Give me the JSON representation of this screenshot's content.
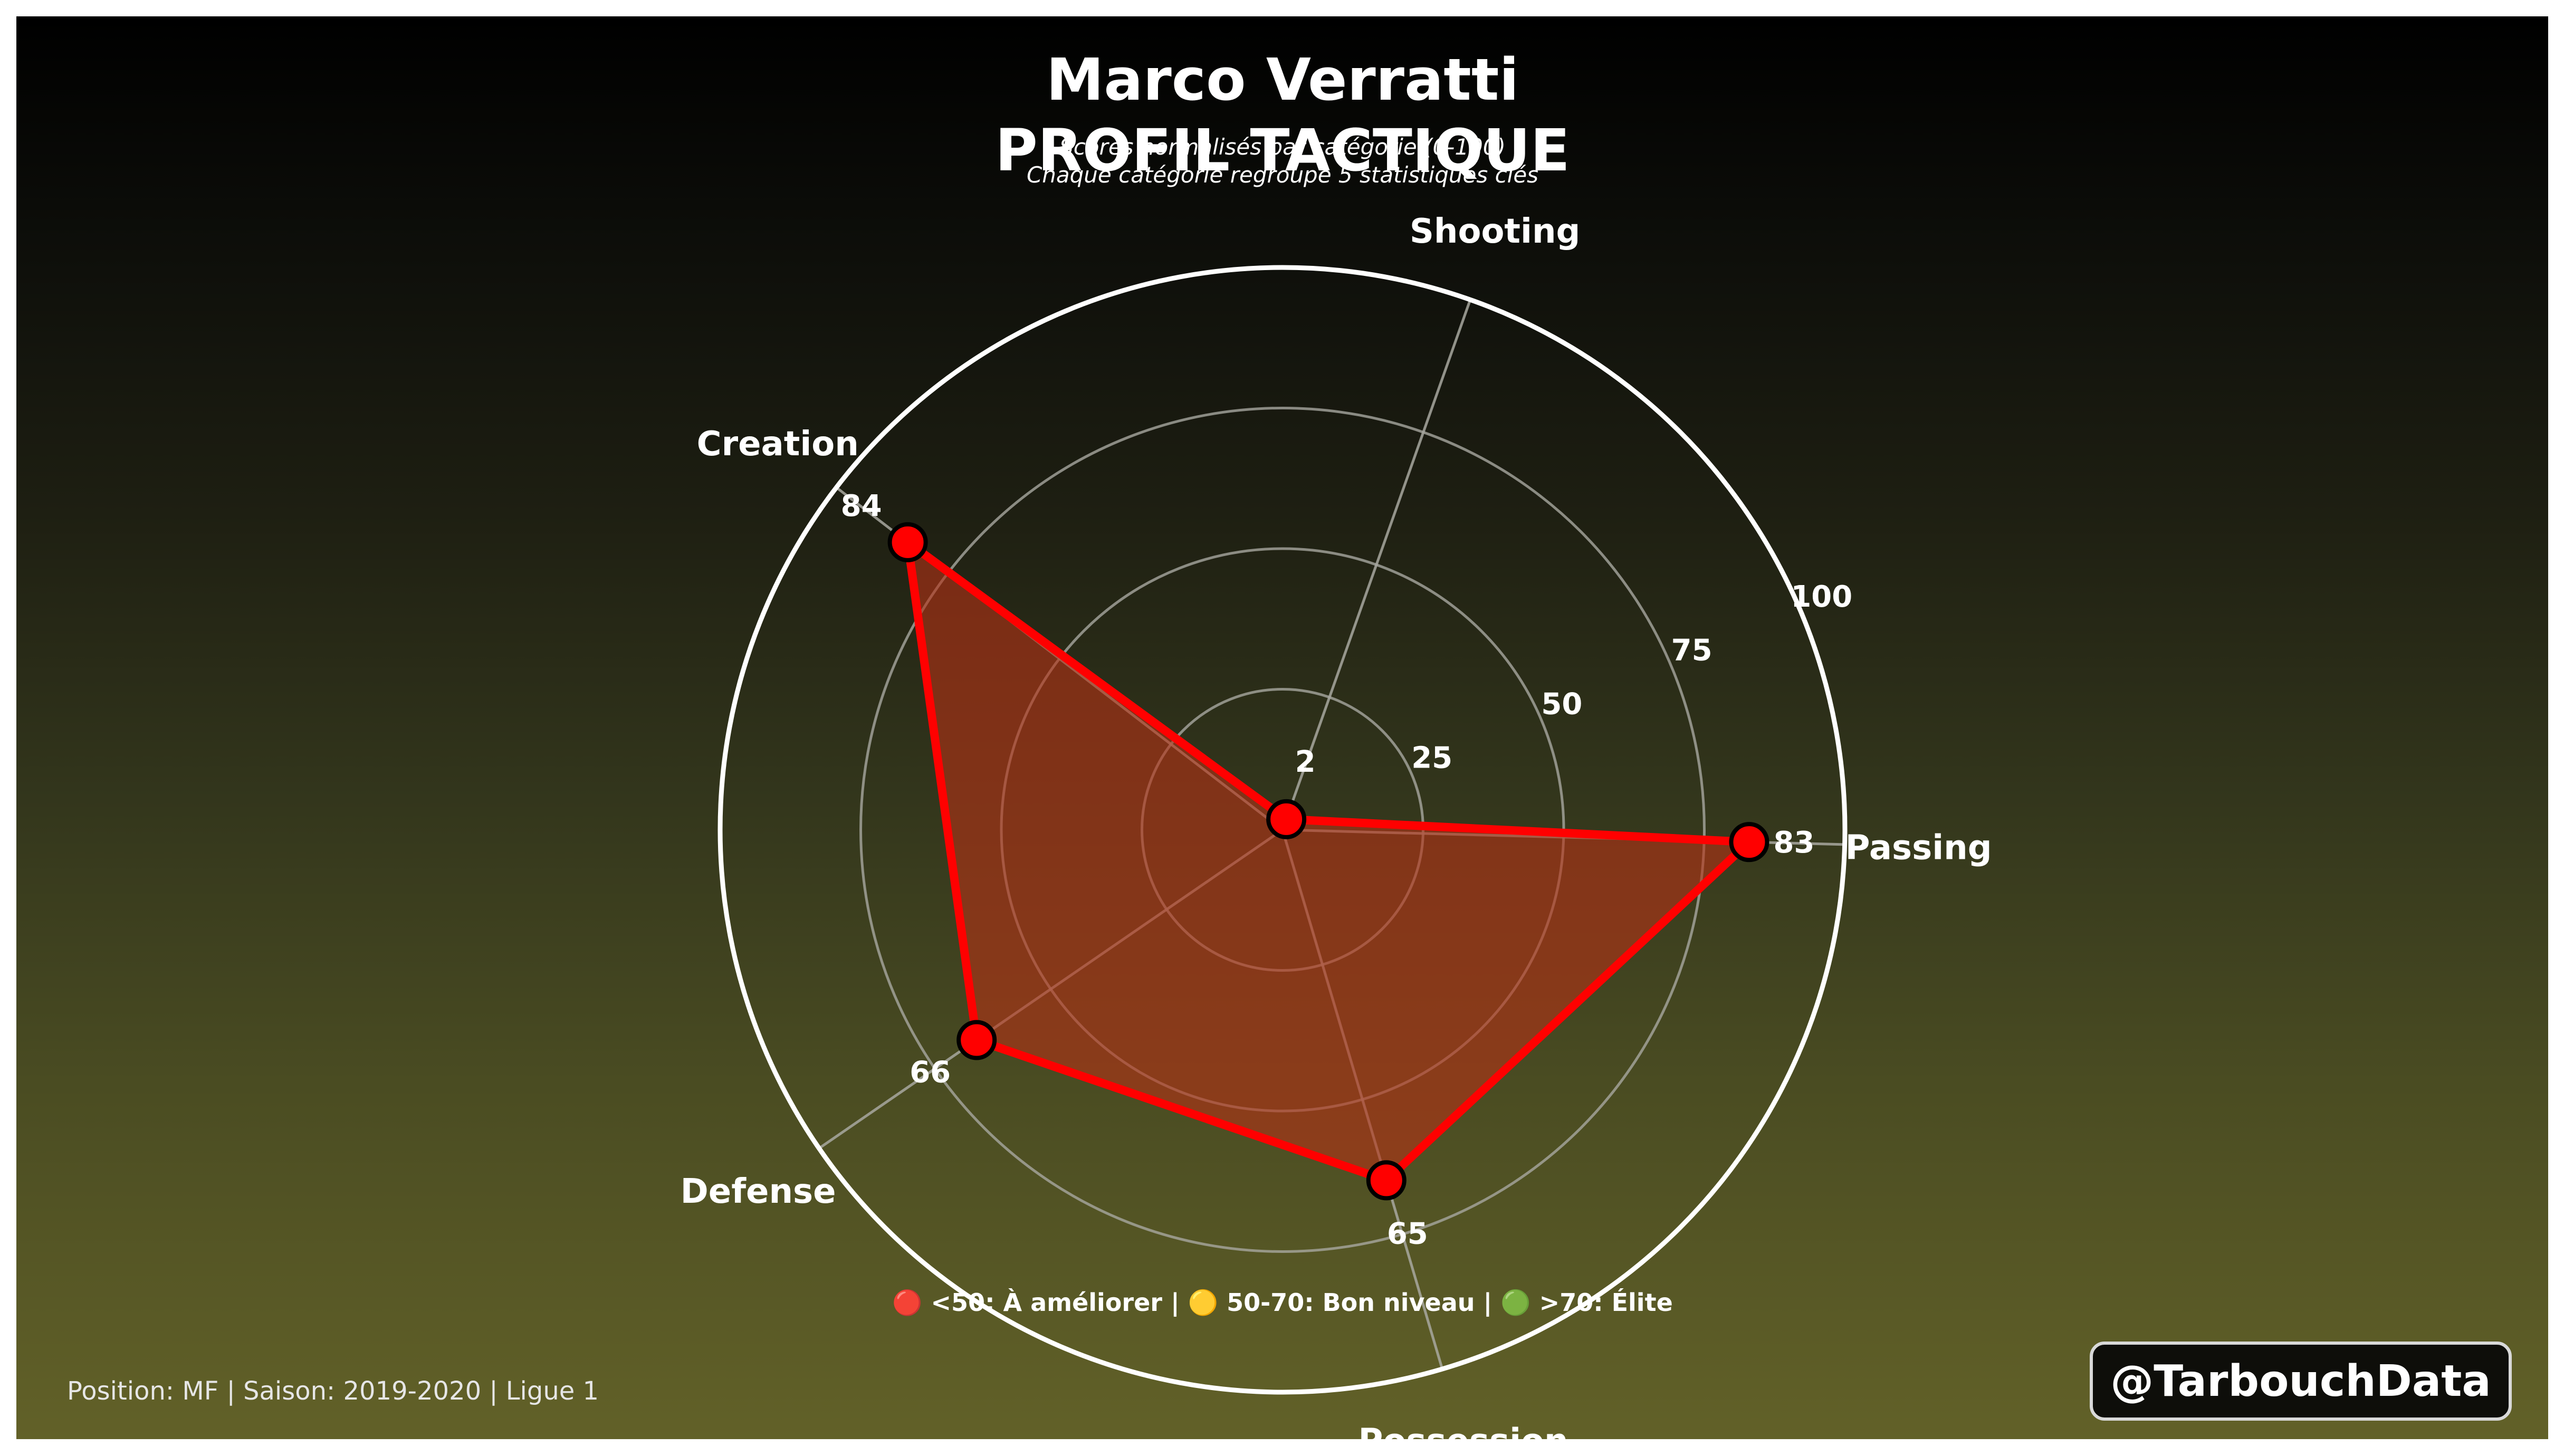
{
  "title": "Marco Verratti",
  "subtitle": "PROFIL TACTIQUE",
  "description_lines": [
    "Scores normalisés par catégorie (0-100)",
    "Chaque catégorie regroupe 5 statistiques clés"
  ],
  "legend_text": "🔴 <50: À améliorer  |  🟡 50-70: Bon niveau  |  🟢 >70: Élite",
  "footer_text": "Position: MF | Saison: 2019-2020 | Ligue 1",
  "handle": "@TarbouchData",
  "colors": {
    "series_line": "#ff0000",
    "series_fill": "#b53216",
    "marker_edge": "#000000",
    "outer_ring": "#ffffff",
    "grid": "#a8a8a0"
  },
  "chart_data": {
    "type": "radar",
    "categories": [
      "Passing",
      "Shooting",
      "Creation",
      "Defense",
      "Possession"
    ],
    "values": [
      83,
      2,
      84,
      66,
      65
    ],
    "value_labels": [
      "83",
      "2",
      "84",
      "66",
      "65"
    ],
    "rlim": [
      0,
      100
    ],
    "rticks": [
      25,
      50,
      75,
      100
    ],
    "rtick_labels": [
      "25",
      "50",
      "75",
      "100"
    ],
    "grid": true,
    "legend": "bottom-center"
  }
}
